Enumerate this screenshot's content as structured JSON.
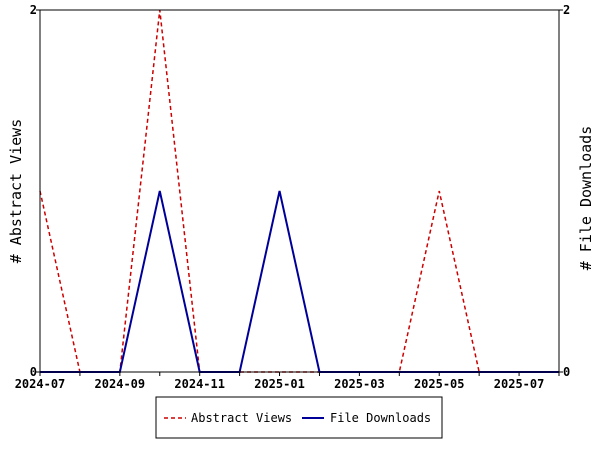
{
  "chart_data": {
    "type": "line",
    "x": [
      "2024-07",
      "2024-08",
      "2024-09",
      "2024-10",
      "2024-11",
      "2024-12",
      "2025-01",
      "2025-02",
      "2025-03",
      "2025-04",
      "2025-05",
      "2025-06",
      "2025-07",
      "2025-08"
    ],
    "x_tick_labels": [
      "2024-07",
      "2024-09",
      "2024-11",
      "2025-01",
      "2025-03",
      "2025-05",
      "2025-07"
    ],
    "series": [
      {
        "name": "Abstract Views",
        "axis": "left",
        "color": "#cc0000",
        "dashed": true,
        "values": [
          1,
          0,
          0,
          2,
          0,
          0,
          0,
          0,
          0,
          0,
          1,
          0,
          0,
          0
        ]
      },
      {
        "name": "File Downloads",
        "axis": "right",
        "color": "#000099",
        "dashed": false,
        "values": [
          0,
          0,
          0,
          1,
          0,
          0,
          1,
          0,
          0,
          0,
          0,
          0,
          0,
          0
        ]
      }
    ],
    "ylabel_left": "# Abstract Views",
    "ylabel_right": "# File Downloads",
    "ylim_left": [
      0,
      2
    ],
    "ylim_right": [
      0,
      2
    ],
    "y_tick_labels_left": [
      "0",
      "2"
    ],
    "y_tick_labels_right": [
      "0",
      "2"
    ],
    "grid": false,
    "legend_position": "bottom"
  }
}
